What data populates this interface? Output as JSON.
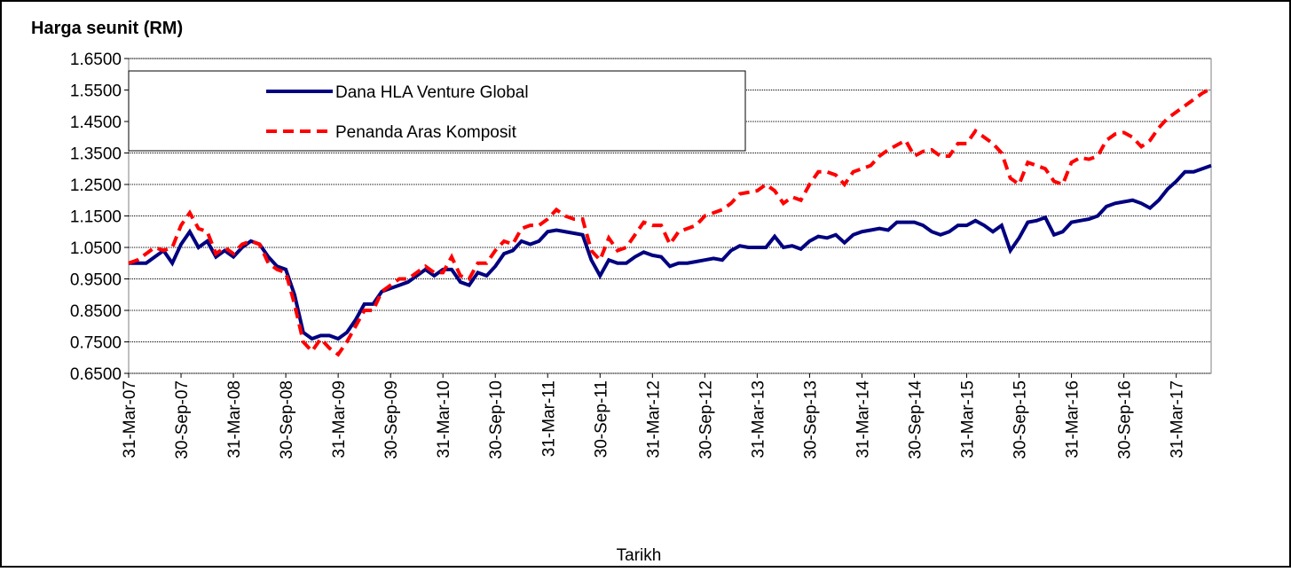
{
  "chart_data": {
    "type": "line",
    "title": "Harga seunit (RM)",
    "x_label": "Tarikh",
    "categories": [
      "31-Mar-07",
      null,
      null,
      null,
      null,
      null,
      "30-Sep-07",
      null,
      null,
      null,
      null,
      null,
      "31-Mar-08",
      null,
      null,
      null,
      null,
      null,
      "30-Sep-08",
      null,
      null,
      null,
      null,
      null,
      "31-Mar-09",
      null,
      null,
      null,
      null,
      null,
      "30-Sep-09",
      null,
      null,
      null,
      null,
      null,
      "31-Mar-10",
      null,
      null,
      null,
      null,
      null,
      "30-Sep-10",
      null,
      null,
      null,
      null,
      null,
      "31-Mar-11",
      null,
      null,
      null,
      null,
      null,
      "30-Sep-11",
      null,
      null,
      null,
      null,
      null,
      "31-Mar-12",
      null,
      null,
      null,
      null,
      null,
      "30-Sep-12",
      null,
      null,
      null,
      null,
      null,
      "31-Mar-13",
      null,
      null,
      null,
      null,
      null,
      "30-Sep-13",
      null,
      null,
      null,
      null,
      null,
      "31-Mar-14",
      null,
      null,
      null,
      null,
      null,
      "30-Sep-14",
      null,
      null,
      null,
      null,
      null,
      "31-Mar-15",
      null,
      null,
      null,
      null,
      null,
      "30-Sep-15",
      null,
      null,
      null,
      null,
      null,
      "31-Mar-16",
      null,
      null,
      null,
      null,
      null,
      "30-Sep-16",
      null,
      null,
      null,
      null,
      null,
      "31-Mar-17",
      null,
      null,
      null,
      null
    ],
    "series": [
      {
        "name": "Dana HLA Venture Global",
        "color": "#000080",
        "dash": false,
        "values": [
          1.0,
          1.0,
          1.0,
          1.02,
          1.04,
          1.0,
          1.06,
          1.1,
          1.05,
          1.07,
          1.02,
          1.04,
          1.02,
          1.05,
          1.07,
          1.06,
          1.02,
          0.99,
          0.98,
          0.9,
          0.78,
          0.76,
          0.77,
          0.77,
          0.76,
          0.78,
          0.82,
          0.87,
          0.87,
          0.91,
          0.92,
          0.93,
          0.94,
          0.96,
          0.98,
          0.96,
          0.98,
          0.98,
          0.94,
          0.93,
          0.97,
          0.96,
          0.99,
          1.03,
          1.04,
          1.07,
          1.06,
          1.07,
          1.1,
          1.105,
          1.1,
          1.095,
          1.09,
          1.01,
          0.96,
          1.01,
          1.0,
          1.0,
          1.02,
          1.035,
          1.025,
          1.02,
          0.99,
          1.0,
          1.0,
          1.005,
          1.01,
          1.015,
          1.01,
          1.04,
          1.055,
          1.05,
          1.05,
          1.05,
          1.085,
          1.05,
          1.055,
          1.045,
          1.07,
          1.085,
          1.08,
          1.09,
          1.065,
          1.09,
          1.1,
          1.105,
          1.11,
          1.105,
          1.13,
          1.13,
          1.13,
          1.12,
          1.1,
          1.09,
          1.1,
          1.12,
          1.12,
          1.135,
          1.12,
          1.1,
          1.12,
          1.04,
          1.08,
          1.13,
          1.135,
          1.145,
          1.09,
          1.1,
          1.13,
          1.135,
          1.14,
          1.15,
          1.18,
          1.19,
          1.195,
          1.2,
          1.19,
          1.175,
          1.2,
          1.235,
          1.26,
          1.29,
          1.29,
          1.3,
          1.31
        ]
      },
      {
        "name": "Penanda Aras Komposit",
        "color": "#ff0000",
        "dash": true,
        "values": [
          1.0,
          1.01,
          1.03,
          1.05,
          1.04,
          1.05,
          1.12,
          1.16,
          1.11,
          1.1,
          1.03,
          1.05,
          1.03,
          1.06,
          1.07,
          1.06,
          1.0,
          0.98,
          0.97,
          0.87,
          0.75,
          0.72,
          0.76,
          0.73,
          0.71,
          0.75,
          0.8,
          0.85,
          0.85,
          0.91,
          0.93,
          0.95,
          0.95,
          0.97,
          0.99,
          0.97,
          0.97,
          1.02,
          0.96,
          0.95,
          1.0,
          1.0,
          1.04,
          1.07,
          1.06,
          1.11,
          1.12,
          1.12,
          1.14,
          1.17,
          1.15,
          1.14,
          1.14,
          1.04,
          1.01,
          1.08,
          1.04,
          1.05,
          1.09,
          1.13,
          1.12,
          1.12,
          1.06,
          1.1,
          1.11,
          1.12,
          1.15,
          1.16,
          1.17,
          1.19,
          1.22,
          1.225,
          1.23,
          1.25,
          1.23,
          1.19,
          1.21,
          1.2,
          1.25,
          1.29,
          1.29,
          1.28,
          1.25,
          1.29,
          1.3,
          1.31,
          1.34,
          1.36,
          1.375,
          1.39,
          1.34,
          1.355,
          1.36,
          1.34,
          1.34,
          1.38,
          1.38,
          1.42,
          1.4,
          1.38,
          1.35,
          1.27,
          1.25,
          1.32,
          1.31,
          1.3,
          1.26,
          1.25,
          1.32,
          1.335,
          1.33,
          1.34,
          1.39,
          1.41,
          1.415,
          1.4,
          1.37,
          1.39,
          1.43,
          1.46,
          1.48,
          1.5,
          1.52,
          1.54,
          1.555
        ]
      }
    ],
    "ylim": [
      0.65,
      1.65
    ],
    "yticks": [
      {
        "value": 0.65,
        "label": "0.6500"
      },
      {
        "value": 0.75,
        "label": "0.7500"
      },
      {
        "value": 0.85,
        "label": "0.8500"
      },
      {
        "value": 0.95,
        "label": "0.9500"
      },
      {
        "value": 1.05,
        "label": "1.0500"
      },
      {
        "value": 1.15,
        "label": "1.1500"
      },
      {
        "value": 1.25,
        "label": "1.2500"
      },
      {
        "value": 1.35,
        "label": "1.3500"
      },
      {
        "value": 1.45,
        "label": "1.4500"
      },
      {
        "value": 1.55,
        "label": "1.5500"
      },
      {
        "value": 1.65,
        "label": "1.6500"
      }
    ],
    "grid": true,
    "legend": "upper left"
  }
}
